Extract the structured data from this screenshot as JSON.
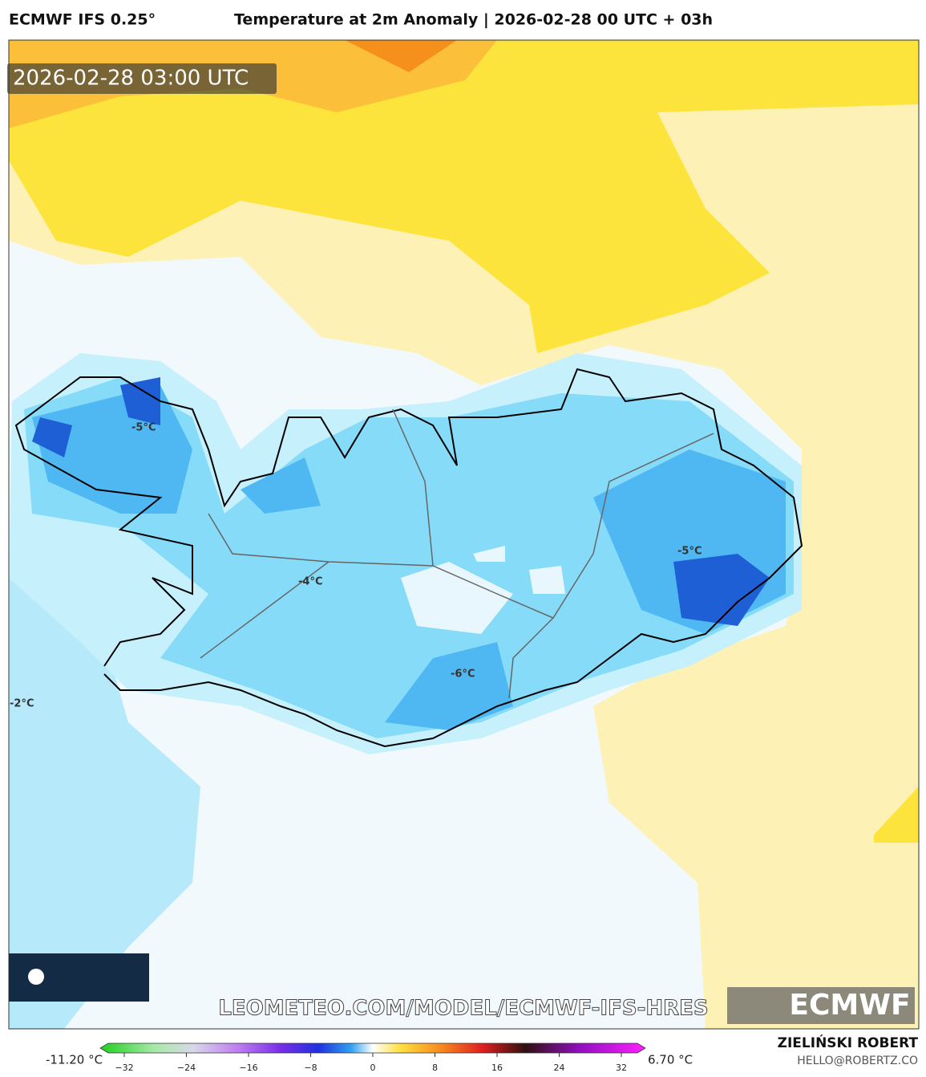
{
  "header": {
    "model": "ECMWF IFS 0.25°",
    "title": "Temperature at 2m Anomaly | 2026-02-28 00 UTC + 03h"
  },
  "map": {
    "timestamp": "2026-02-28 03:00 UTC",
    "labels": [
      "-5°C",
      "-4°C",
      "-6°C",
      "-5°C",
      "-2°C"
    ],
    "watermark": "LEOMETEO.COM/MODEL/ECMWF-IFS-HRES",
    "logo": "ECMWF"
  },
  "colorbar": {
    "min_label": "-11.20 °C",
    "max_label": "6.70 °C",
    "ticks": [
      {
        "value": -32,
        "label": "−32"
      },
      {
        "value": -24,
        "label": "−24"
      },
      {
        "value": -16,
        "label": "−16"
      },
      {
        "value": -8,
        "label": "−8"
      },
      0,
      8,
      16,
      24,
      32
    ]
  },
  "footer": {
    "author": "ZIELIŃSKI ROBERT",
    "contact": "HELLO@ROBERTZ.CO"
  }
}
